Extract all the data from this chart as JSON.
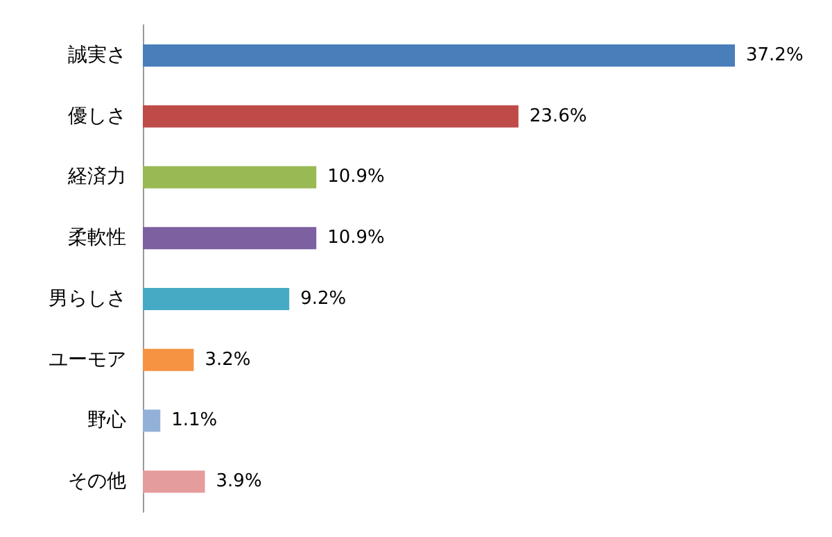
{
  "chart_data": {
    "type": "bar",
    "orientation": "horizontal",
    "categories": [
      "誠実さ",
      "優しさ",
      "経済力",
      "柔軟性",
      "男らしさ",
      "ユーモア",
      "野心",
      "その他"
    ],
    "values": [
      37.2,
      23.6,
      10.9,
      10.9,
      9.2,
      3.2,
      1.1,
      3.9
    ],
    "colors": [
      "#4a7ebb",
      "#be4b48",
      "#98b954",
      "#7d60a0",
      "#46aac5",
      "#f59342",
      "#93b1d8",
      "#e59c9c"
    ],
    "value_labels": [
      "37.2%",
      "23.6%",
      "10.9%",
      "10.9%",
      "9.2%",
      "3.2%",
      "1.1%",
      "3.9%"
    ]
  }
}
